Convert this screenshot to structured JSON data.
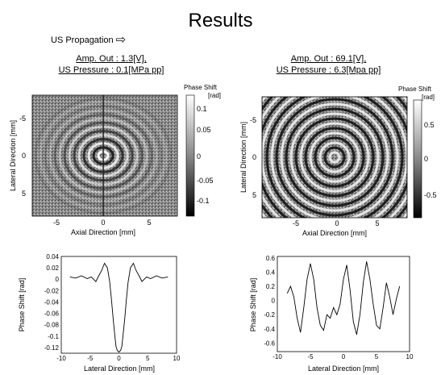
{
  "title": "Results",
  "propagation_label": "US Propagation",
  "panels": {
    "left": {
      "amp": "Amp. Out : 1.3[V],",
      "pressure": "US Pressure : 0.1[MPa pp]"
    },
    "right": {
      "amp": "Amp. Out : 69.1[V],",
      "pressure": "US Pressure : 6.3[Mpa pp]"
    }
  },
  "colorbar": {
    "title": "Phase Shift",
    "unit": "[rad]",
    "left_ticks": [
      "0.1",
      "0.05",
      "0",
      "-0.05",
      "-0.1"
    ],
    "right_ticks": [
      "0.5",
      "0",
      "-0.5"
    ],
    "colormap": "grayscale"
  },
  "chart_data": [
    {
      "type": "heatmap",
      "description_from_image": "phase shift map, low amplitude",
      "xlabel": "Axial Direction [mm]",
      "ylabel": "Lateral Direction [mm]",
      "xticks": [
        "-5",
        "0",
        "5"
      ],
      "yticks": [
        "-5",
        "0",
        "5"
      ],
      "colorbar_label": "Phase Shift [rad]",
      "clim": [
        -0.12,
        0.12
      ]
    },
    {
      "type": "heatmap",
      "xlabel": "Axial Direction [mm]",
      "ylabel": "Lateral Direction [mm]",
      "xticks": [
        "-5",
        "0",
        "5"
      ],
      "yticks": [
        "-5",
        "0",
        "5"
      ],
      "colorbar_label": "Phase Shift [rad]",
      "clim": [
        -0.65,
        0.65
      ]
    },
    {
      "type": "line",
      "xlabel": "Lateral Direction [mm]",
      "ylabel": "Phase Shift [rad]",
      "xlim": [
        -10,
        10
      ],
      "ylim": [
        -0.13,
        0.04
      ],
      "xticks": [
        "-10",
        "-5",
        "0",
        "5",
        "10"
      ],
      "yticks": [
        "0.04",
        "0.02",
        "0",
        "-0.02",
        "-0.04",
        "-0.06",
        "-0.08",
        "-0.1",
        "-0.12"
      ],
      "x": [
        -8.5,
        -7.5,
        -6.5,
        -5.5,
        -4.8,
        -4,
        -3.5,
        -3,
        -2.5,
        -2,
        -1.6,
        -1.3,
        -1,
        -0.7,
        -0.5,
        -0.3,
        0,
        0.3,
        0.5,
        0.7,
        1,
        1.3,
        1.6,
        2,
        2.5,
        3,
        3.5,
        4,
        4.8,
        5.5,
        6.5,
        7.5,
        8.5
      ],
      "y": [
        0.004,
        0.002,
        0.006,
        0.001,
        0.004,
        -0.004,
        0.006,
        0.015,
        0.028,
        0.02,
        -0.005,
        -0.035,
        -0.07,
        -0.1,
        -0.118,
        -0.125,
        -0.128,
        -0.125,
        -0.118,
        -0.1,
        -0.07,
        -0.035,
        -0.005,
        0.02,
        0.028,
        0.015,
        0.006,
        -0.004,
        0.004,
        0.001,
        0.006,
        0.002,
        0.004
      ]
    },
    {
      "type": "line",
      "xlabel": "Lateral Direction [mm]",
      "ylabel": "Phase Shift [rad]",
      "xlim": [
        -10,
        10
      ],
      "ylim": [
        -0.72,
        0.62
      ],
      "xticks": [
        "-10",
        "-5",
        "0",
        "5",
        "10"
      ],
      "yticks": [
        "0.6",
        "0.4",
        "0.2",
        "0",
        "-0.2",
        "-0.4",
        "-0.6"
      ],
      "x": [
        -8.5,
        -8,
        -7.5,
        -7,
        -6.5,
        -6,
        -5.5,
        -5,
        -4.5,
        -4,
        -3.5,
        -3,
        -2.5,
        -2,
        -1.5,
        -1,
        -0.5,
        0,
        0.5,
        1,
        1.5,
        2,
        2.5,
        3,
        3.5,
        4,
        4.5,
        5,
        5.5,
        6,
        6.5,
        7,
        7.5,
        8,
        8.5
      ],
      "y": [
        0.1,
        0.2,
        0.05,
        -0.25,
        -0.45,
        -0.1,
        0.3,
        0.52,
        0.3,
        -0.1,
        -0.35,
        -0.42,
        -0.2,
        -0.25,
        -0.1,
        -0.2,
        -0.05,
        0.3,
        0.5,
        0.15,
        -0.3,
        -0.48,
        -0.2,
        0.25,
        0.55,
        0.3,
        -0.05,
        -0.35,
        -0.4,
        -0.1,
        0.25,
        0.05,
        -0.2,
        0.02,
        0.2
      ]
    }
  ]
}
